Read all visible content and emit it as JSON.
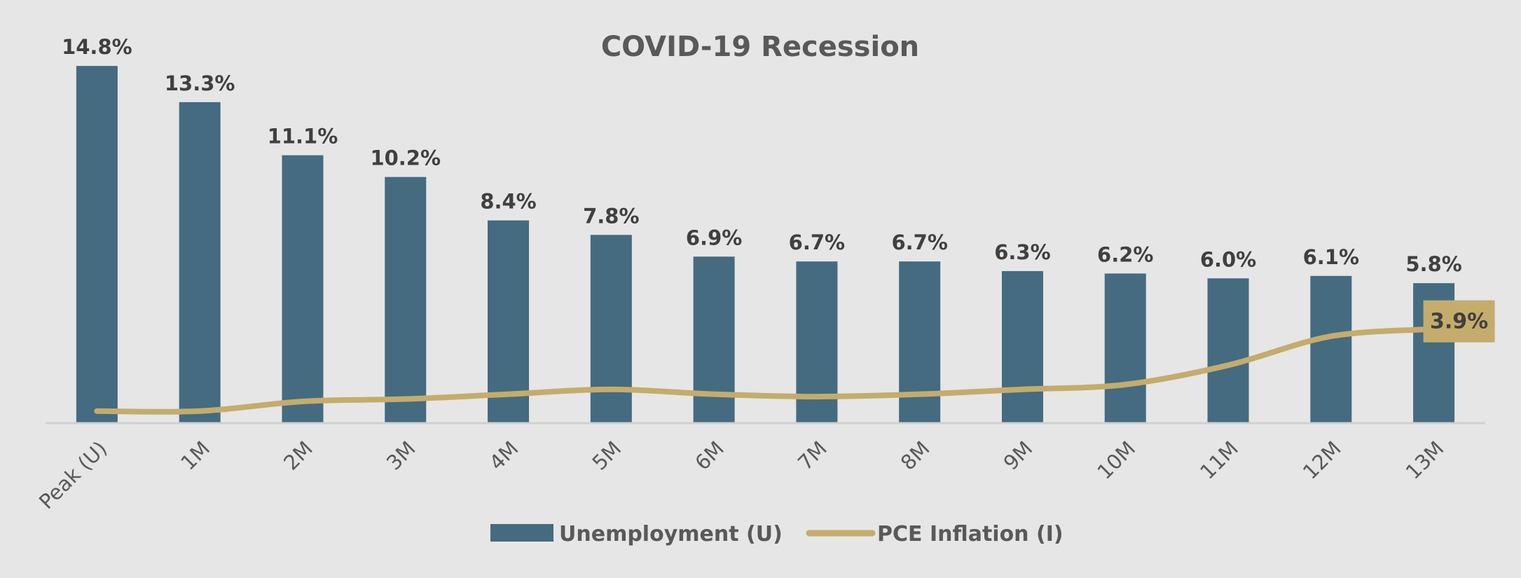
{
  "chart_data": {
    "type": "bar",
    "title": "COVID-19 Recession",
    "xlabel": "",
    "ylabel": "",
    "categories": [
      "Peak (U)",
      "1M",
      "2M",
      "3M",
      "4M",
      "5M",
      "6M",
      "7M",
      "8M",
      "9M",
      "10M",
      "11M",
      "12M",
      "13M"
    ],
    "series": [
      {
        "name": "Unemployment (U)",
        "type": "bar",
        "color": "#446b80",
        "values": [
          14.8,
          13.3,
          11.1,
          10.2,
          8.4,
          7.8,
          6.9,
          6.7,
          6.7,
          6.3,
          6.2,
          6.0,
          6.1,
          5.8
        ],
        "labels": [
          "14.8%",
          "13.3%",
          "11.1%",
          "10.2%",
          "8.4%",
          "7.8%",
          "6.9%",
          "6.7%",
          "6.7%",
          "6.3%",
          "6.2%",
          "6.0%",
          "6.1%",
          "5.8%"
        ]
      },
      {
        "name": "PCE Inflation (I)",
        "type": "line",
        "color": "#c4ac6c",
        "values": [
          0.5,
          0.5,
          0.9,
          1.0,
          1.2,
          1.4,
          1.2,
          1.1,
          1.2,
          1.4,
          1.6,
          2.4,
          3.6,
          3.9
        ],
        "last_label": "3.9%"
      }
    ],
    "ylim": [
      0,
      15.5
    ],
    "grid": false,
    "legend_position": "bottom"
  }
}
